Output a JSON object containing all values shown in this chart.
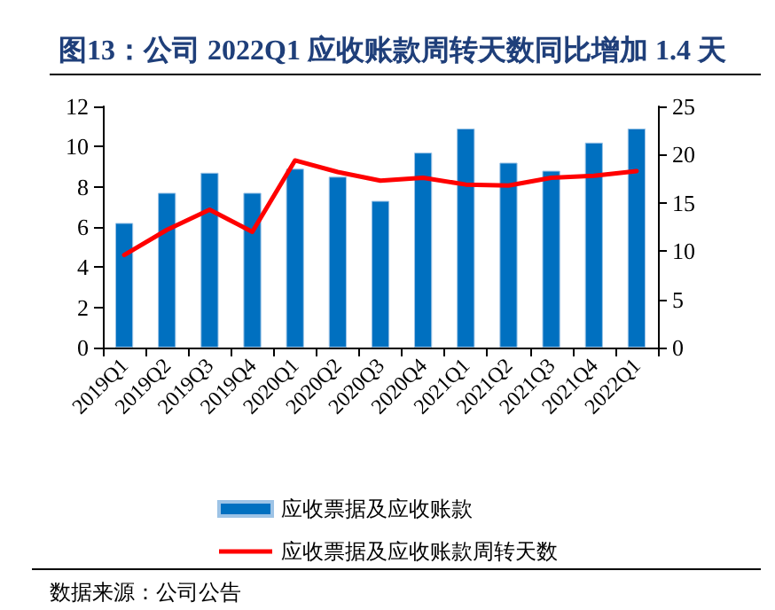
{
  "chart_data": {
    "type": "bar",
    "title": "图13：公司 2022Q1 应收账款周转天数同比增加 1.4 天",
    "categories": [
      "2019Q1",
      "2019Q2",
      "2019Q3",
      "2019Q4",
      "2020Q1",
      "2020Q2",
      "2020Q3",
      "2020Q4",
      "2021Q1",
      "2021Q2",
      "2021Q3",
      "2021Q4",
      "2022Q1"
    ],
    "series": [
      {
        "name": "应收票据及应收账款",
        "color": "#0070c0",
        "values": [
          6.2,
          7.7,
          8.7,
          7.7,
          8.9,
          8.5,
          7.3,
          9.7,
          10.9,
          9.2,
          8.8,
          10.2,
          10.9
        ]
      },
      {
        "name": "应收票据及应收账款周转天数",
        "type": "line",
        "axis": "y2",
        "color": "#ff0000",
        "values": [
          9.6,
          12.2,
          14.3,
          12.0,
          19.4,
          18.2,
          17.3,
          17.6,
          16.9,
          16.8,
          17.6,
          17.8,
          18.3
        ]
      }
    ],
    "ylim": [
      0,
      12
    ],
    "yticks": [
      0,
      2,
      4,
      6,
      8,
      10,
      12
    ],
    "y2lim": [
      0,
      25
    ],
    "y2ticks": [
      0,
      5,
      10,
      15,
      20,
      25
    ],
    "grid": false,
    "legend": "bottom",
    "marker": "none",
    "line_style": "solid",
    "annotations": [
      "数据来源：公司公告"
    ]
  }
}
